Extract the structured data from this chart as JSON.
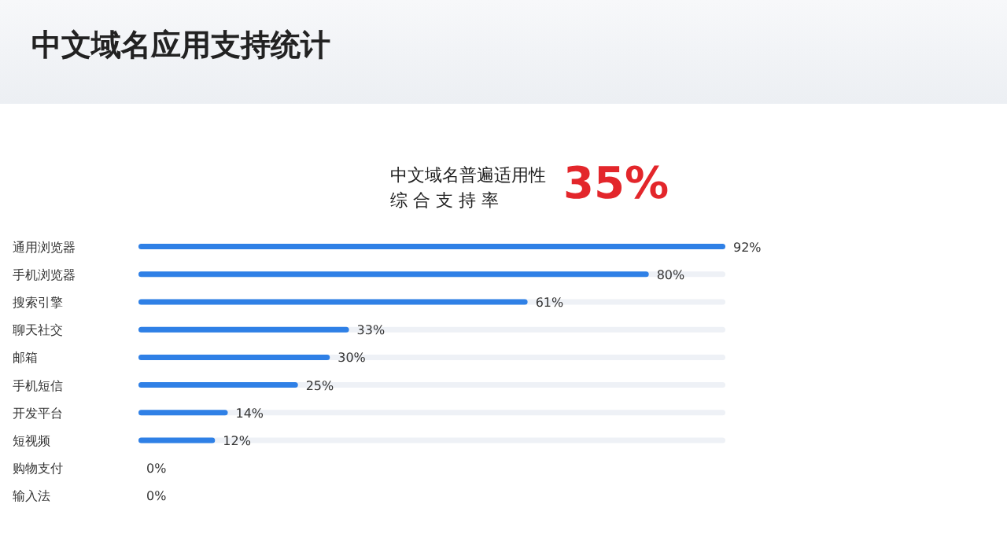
{
  "chart_data": {
    "type": "bar",
    "orientation": "horizontal",
    "title": "中文域名应用支持统计",
    "subtitle": "中文域名普遍适用性",
    "annotations": [
      "综 合 支 持 率",
      "35%"
    ],
    "categories": [
      "通用浏览器",
      "手机浏览器",
      "搜索引擎",
      "聊天社交",
      "邮箱",
      "手机短信",
      "开发平台",
      "短视频",
      "购物支付",
      "输入法"
    ],
    "values": [
      92,
      80,
      61,
      33,
      30,
      25,
      14,
      12,
      0,
      0
    ],
    "value_labels": [
      "92%",
      "80%",
      "61%",
      "33%",
      "30%",
      "25%",
      "14%",
      "12%",
      "0%",
      "0%"
    ],
    "color": "#2f80e6",
    "tick_labels": "y",
    "grid": false,
    "legend": false
  }
}
